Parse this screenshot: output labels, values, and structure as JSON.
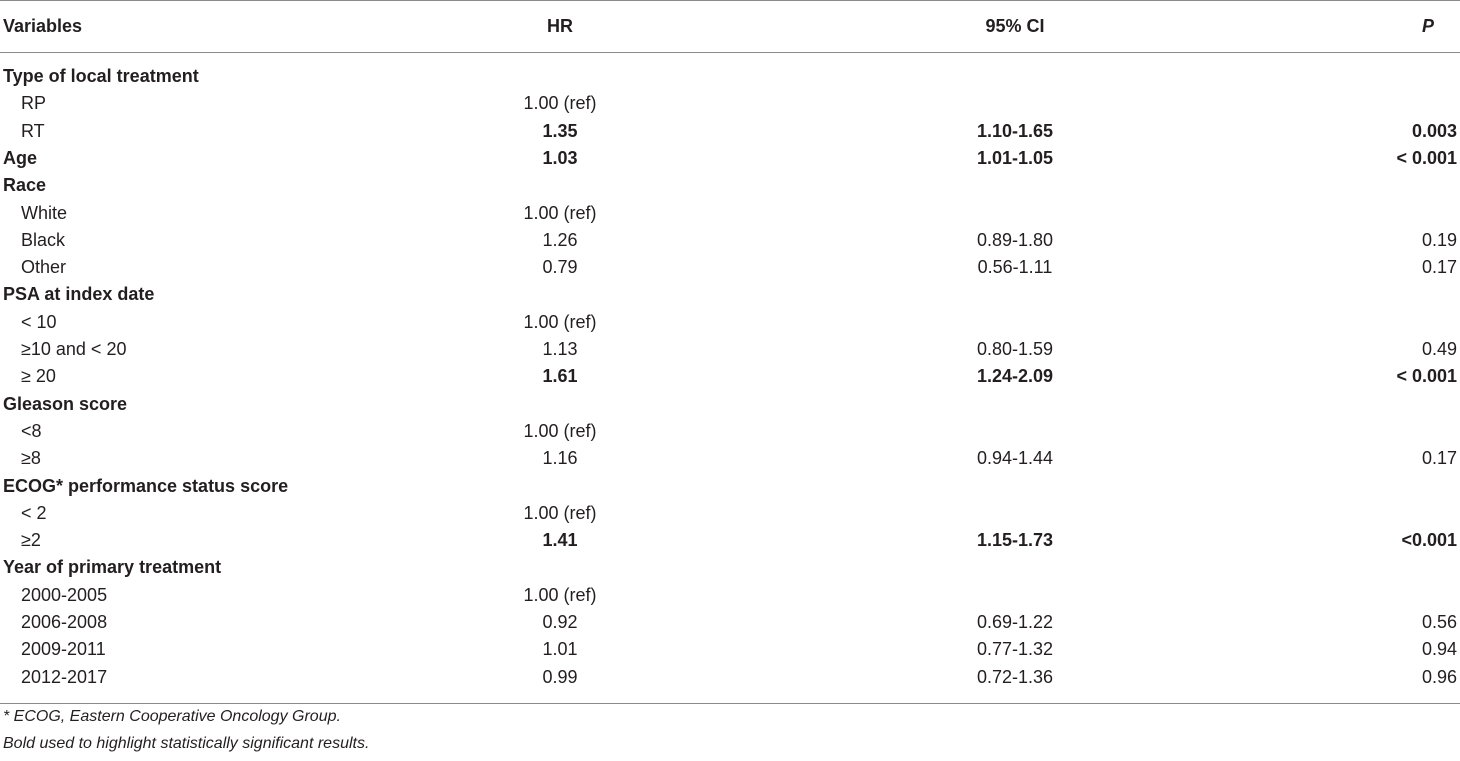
{
  "header": {
    "variables": "Variables",
    "hr": "HR",
    "ci": "95% CI",
    "p": "P"
  },
  "rows": [
    {
      "type": "cat",
      "label": "Type of local treatment",
      "hr": "",
      "ci": "",
      "p": ""
    },
    {
      "type": "sub",
      "label": "RP",
      "hr": "1.00 (ref)",
      "ci": "",
      "p": ""
    },
    {
      "type": "sub sig",
      "label": "RT",
      "hr": "1.35",
      "ci": "1.10-1.65",
      "p": "0.003"
    },
    {
      "type": "cat sig",
      "label": "Age",
      "hr": "1.03",
      "ci": "1.01-1.05",
      "p": "< 0.001"
    },
    {
      "type": "cat",
      "label": "Race",
      "hr": "",
      "ci": "",
      "p": ""
    },
    {
      "type": "sub",
      "label": "White",
      "hr": "1.00 (ref)",
      "ci": "",
      "p": ""
    },
    {
      "type": "sub",
      "label": "Black",
      "hr": "1.26",
      "ci": "0.89-1.80",
      "p": "0.19"
    },
    {
      "type": "sub",
      "label": "Other",
      "hr": "0.79",
      "ci": "0.56-1.11",
      "p": "0.17"
    },
    {
      "type": "cat",
      "label": "PSA at index date",
      "hr": "",
      "ci": "",
      "p": ""
    },
    {
      "type": "sub",
      "label": "< 10",
      "hr": "1.00 (ref)",
      "ci": "",
      "p": ""
    },
    {
      "type": "sub",
      "label": "≥10 and < 20",
      "hr": "1.13",
      "ci": "0.80-1.59",
      "p": "0.49"
    },
    {
      "type": "sub sig",
      "label": "≥ 20",
      "hr": "1.61",
      "ci": "1.24-2.09",
      "p": "< 0.001"
    },
    {
      "type": "cat",
      "label": "Gleason score",
      "hr": "",
      "ci": "",
      "p": ""
    },
    {
      "type": "sub",
      "label": "<8",
      "hr": "1.00 (ref)",
      "ci": "",
      "p": ""
    },
    {
      "type": "sub",
      "label": "≥8",
      "hr": "1.16",
      "ci": "0.94-1.44",
      "p": "0.17"
    },
    {
      "type": "cat",
      "label": "ECOG* performance status score",
      "hr": "",
      "ci": "",
      "p": ""
    },
    {
      "type": "sub",
      "label": "< 2",
      "hr": "1.00 (ref)",
      "ci": "",
      "p": ""
    },
    {
      "type": "sub sig",
      "label": "≥2",
      "hr": "1.41",
      "ci": "1.15-1.73",
      "p": "<0.001"
    },
    {
      "type": "cat",
      "label": "Year of primary treatment",
      "hr": "",
      "ci": "",
      "p": ""
    },
    {
      "type": "sub",
      "label": "2000-2005",
      "hr": "1.00 (ref)",
      "ci": "",
      "p": ""
    },
    {
      "type": "sub",
      "label": "2006-2008",
      "hr": "0.92",
      "ci": "0.69-1.22",
      "p": "0.56"
    },
    {
      "type": "sub",
      "label": "2009-2011",
      "hr": "1.01",
      "ci": "0.77-1.32",
      "p": "0.94"
    },
    {
      "type": "sub",
      "label": "2012-2017",
      "hr": "0.99",
      "ci": "0.72-1.36",
      "p": "0.96"
    }
  ],
  "footnotes": {
    "ecog": "* ECOG, Eastern Cooperative Oncology Group.",
    "bold": "Bold used to highlight statistically significant results."
  }
}
